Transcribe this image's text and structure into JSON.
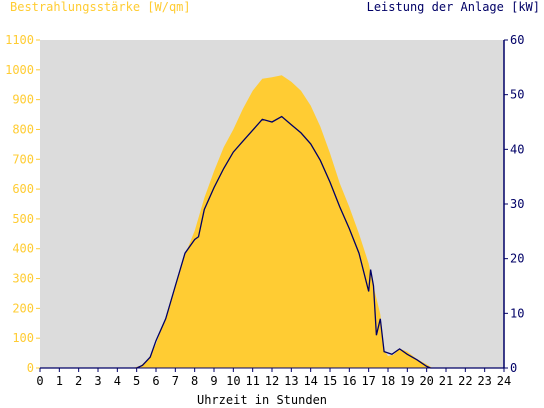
{
  "chart_data": {
    "type": "area",
    "title_left": "Bestrahlungsstärke [W/qm]",
    "title_right": "Leistung der Anlage [kW]",
    "xlabel": "Uhrzeit in Stunden",
    "x_ticks": [
      "0",
      "1",
      "2",
      "3",
      "4",
      "5",
      "6",
      "7",
      "8",
      "9",
      "10",
      "11",
      "12",
      "13",
      "14",
      "15",
      "16",
      "17",
      "18",
      "19",
      "20",
      "21",
      "22",
      "23",
      "24"
    ],
    "xlim": [
      0,
      24
    ],
    "y_left": {
      "label": "Bestrahlungsstärke [W/qm]",
      "ticks": [
        "0",
        "100",
        "200",
        "300",
        "400",
        "500",
        "600",
        "700",
        "800",
        "900",
        "1000",
        "1100"
      ],
      "ylim": [
        0,
        1100
      ]
    },
    "y_right": {
      "label": "Leistung der Anlage [kW]",
      "ticks": [
        "0",
        "10",
        "20",
        "30",
        "40",
        "50",
        "60"
      ],
      "ylim": [
        0,
        60
      ]
    },
    "grid": false,
    "series": [
      {
        "name": "Bestrahlungsstärke [W/qm]",
        "kind": "area",
        "axis": "left",
        "color": "#ffcc33",
        "points": [
          [
            0,
            0
          ],
          [
            4.8,
            0
          ],
          [
            5.2,
            8
          ],
          [
            5.6,
            30
          ],
          [
            6,
            80
          ],
          [
            6.5,
            170
          ],
          [
            7,
            280
          ],
          [
            7.5,
            380
          ],
          [
            8,
            460
          ],
          [
            8.5,
            570
          ],
          [
            9,
            660
          ],
          [
            9.5,
            740
          ],
          [
            10,
            800
          ],
          [
            10.5,
            870
          ],
          [
            11,
            930
          ],
          [
            11.5,
            970
          ],
          [
            12,
            975
          ],
          [
            12.5,
            982
          ],
          [
            13,
            960
          ],
          [
            13.5,
            930
          ],
          [
            14,
            880
          ],
          [
            14.5,
            810
          ],
          [
            15,
            720
          ],
          [
            15.5,
            620
          ],
          [
            16,
            540
          ],
          [
            16.5,
            450
          ],
          [
            17,
            350
          ],
          [
            17.3,
            260
          ],
          [
            17.6,
            180
          ],
          [
            17.8,
            60
          ],
          [
            18,
            40
          ],
          [
            18.3,
            45
          ],
          [
            18.6,
            65
          ],
          [
            19,
            55
          ],
          [
            19.5,
            30
          ],
          [
            20,
            12
          ],
          [
            20.3,
            0
          ],
          [
            24,
            0
          ]
        ]
      },
      {
        "name": "Leistung der Anlage [kW]",
        "kind": "line",
        "axis": "right",
        "color": "#000066",
        "points": [
          [
            0,
            0
          ],
          [
            5,
            0
          ],
          [
            5.3,
            0.5
          ],
          [
            5.7,
            2
          ],
          [
            6,
            5
          ],
          [
            6.5,
            9
          ],
          [
            7,
            15
          ],
          [
            7.5,
            21
          ],
          [
            8,
            23.5
          ],
          [
            8.2,
            24
          ],
          [
            8.5,
            29
          ],
          [
            9,
            33
          ],
          [
            9.5,
            36.5
          ],
          [
            10,
            39.5
          ],
          [
            10.5,
            41.5
          ],
          [
            11,
            43.5
          ],
          [
            11.5,
            45.5
          ],
          [
            12,
            45
          ],
          [
            12.5,
            46
          ],
          [
            13,
            44.5
          ],
          [
            13.5,
            43
          ],
          [
            14,
            41
          ],
          [
            14.5,
            38
          ],
          [
            15,
            34
          ],
          [
            15.5,
            29.5
          ],
          [
            16,
            25.5
          ],
          [
            16.5,
            21
          ],
          [
            17,
            14
          ],
          [
            17.1,
            18
          ],
          [
            17.25,
            15
          ],
          [
            17.4,
            6
          ],
          [
            17.6,
            9
          ],
          [
            17.8,
            3
          ],
          [
            18.2,
            2.5
          ],
          [
            18.6,
            3.5
          ],
          [
            19,
            2.5
          ],
          [
            19.5,
            1.5
          ],
          [
            20,
            0.3
          ],
          [
            20.2,
            0
          ],
          [
            24,
            0
          ]
        ]
      }
    ]
  }
}
